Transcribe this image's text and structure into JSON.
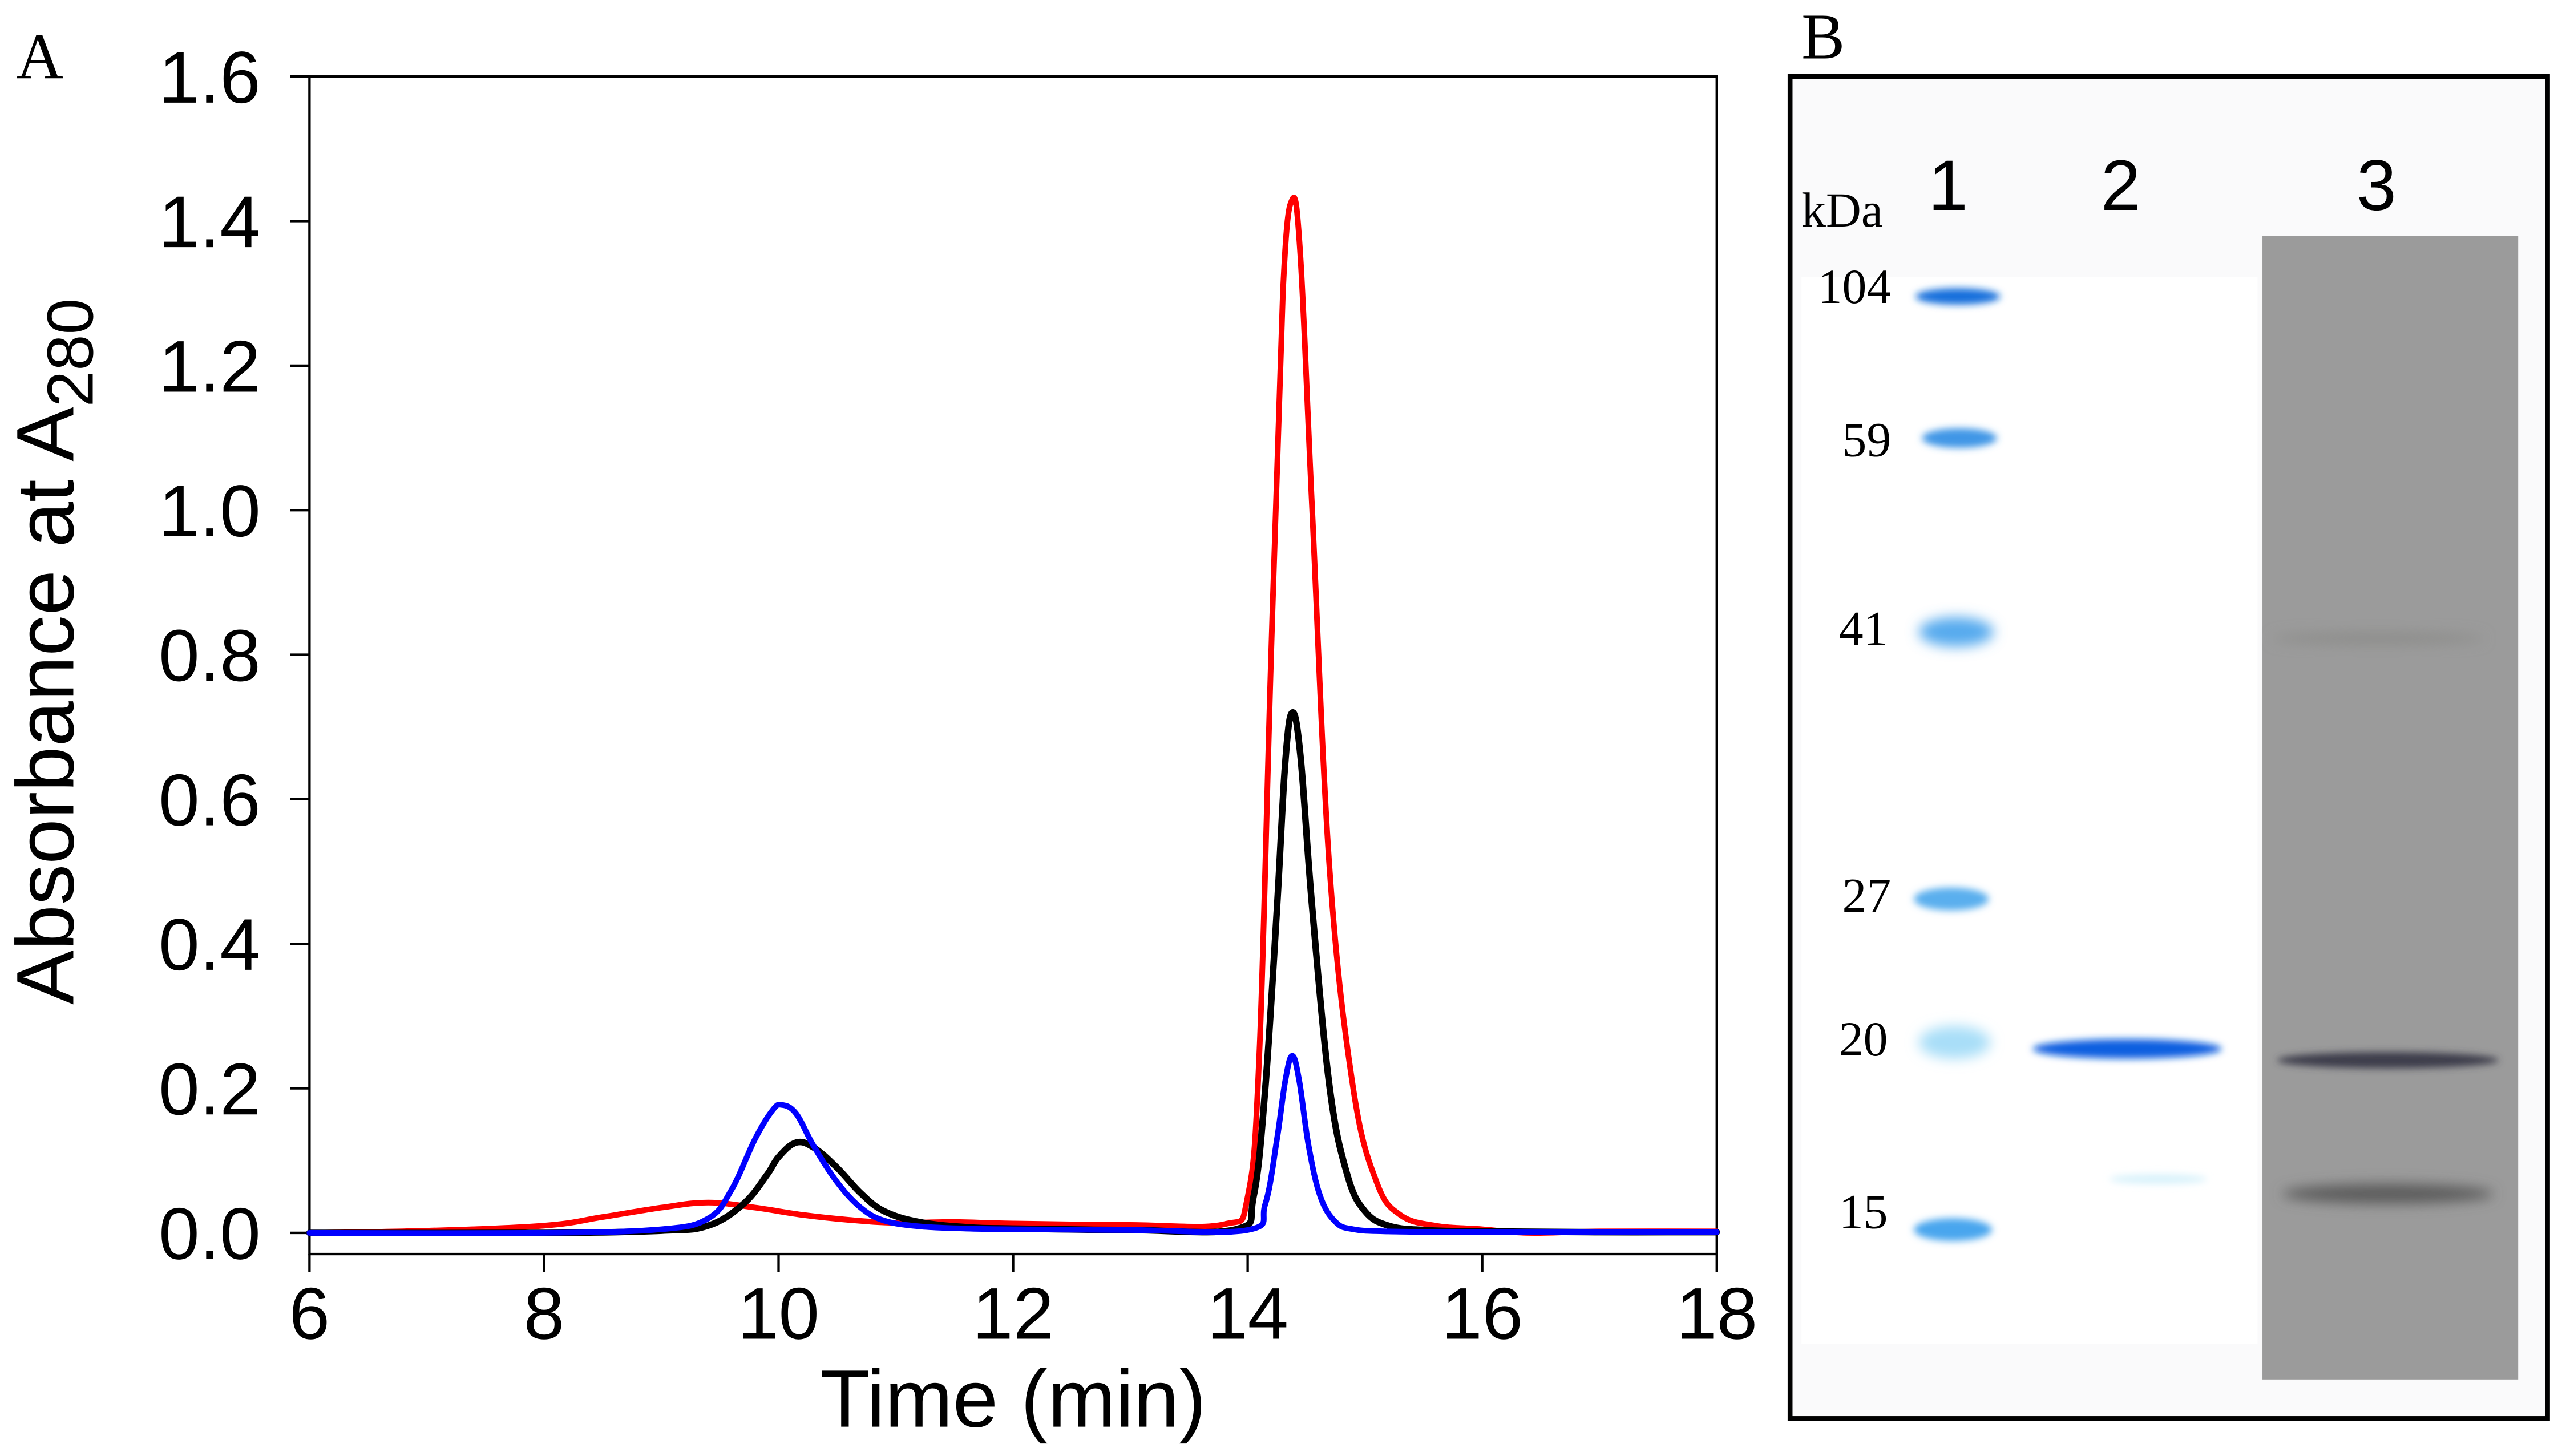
{
  "chart_data": [
    {
      "type": "line",
      "panel_label": "A",
      "title": "",
      "xlabel": "Time (min)",
      "ylabel_main": "Absorbance  at  A",
      "ylabel_sub": "280",
      "xlim": [
        6,
        18
      ],
      "ylim": [
        0,
        1.6
      ],
      "xticks": [
        6,
        8,
        10,
        12,
        14,
        16,
        18
      ],
      "xtick_labels": [
        "6",
        "8",
        "10",
        "12",
        "14",
        "16",
        "18"
      ],
      "yticks": [
        0,
        0.2,
        0.4,
        0.6,
        0.8,
        1.0,
        1.2,
        1.4,
        1.6
      ],
      "ytick_labels": [
        "0.0",
        "0.2",
        "0.4",
        "0.6",
        "0.8",
        "1.0",
        "1.2",
        "1.4",
        "1.6"
      ],
      "grid": false,
      "legend": "none",
      "series": [
        {
          "name": "red",
          "color": "#ff0000",
          "x": [
            6,
            7,
            8,
            8.5,
            9,
            9.4,
            9.8,
            10.2,
            10.6,
            11,
            11.5,
            12,
            13,
            13.8,
            14.0,
            14.1,
            14.2,
            14.3,
            14.38,
            14.45,
            14.55,
            14.7,
            14.9,
            15.1,
            15.3,
            15.6,
            16,
            16.4,
            17,
            18
          ],
          "y": [
            0.0,
            0.003,
            0.01,
            0.022,
            0.035,
            0.042,
            0.035,
            0.025,
            0.018,
            0.014,
            0.015,
            0.013,
            0.011,
            0.012,
            0.05,
            0.25,
            0.8,
            1.3,
            1.43,
            1.35,
            1.0,
            0.5,
            0.2,
            0.07,
            0.025,
            0.01,
            0.005,
            0.0,
            0.002,
            0.002
          ]
        },
        {
          "name": "black",
          "color": "#000000",
          "x": [
            6,
            8,
            9,
            9.4,
            9.7,
            9.9,
            10.0,
            10.15,
            10.3,
            10.5,
            10.7,
            10.9,
            11.2,
            11.6,
            12,
            13,
            13.9,
            14.05,
            14.15,
            14.25,
            14.32,
            14.38,
            14.45,
            14.55,
            14.7,
            14.85,
            15.0,
            15.2,
            15.5,
            16,
            17,
            18
          ],
          "y": [
            0.0,
            0.0,
            0.003,
            0.01,
            0.04,
            0.08,
            0.105,
            0.125,
            0.118,
            0.09,
            0.055,
            0.03,
            0.015,
            0.008,
            0.006,
            0.004,
            0.005,
            0.05,
            0.2,
            0.45,
            0.65,
            0.72,
            0.66,
            0.45,
            0.2,
            0.08,
            0.03,
            0.01,
            0.004,
            0.002,
            0.001,
            0.001
          ]
        },
        {
          "name": "blue",
          "color": "#0000ff",
          "x": [
            6,
            8,
            9,
            9.4,
            9.6,
            9.8,
            9.95,
            10.03,
            10.15,
            10.3,
            10.5,
            10.7,
            10.9,
            11.2,
            11.6,
            12,
            13,
            14.0,
            14.15,
            14.25,
            14.32,
            14.38,
            14.44,
            14.52,
            14.62,
            14.75,
            14.9,
            15.2,
            16,
            18
          ],
          "y": [
            0.0,
            0.0,
            0.005,
            0.02,
            0.06,
            0.13,
            0.17,
            0.177,
            0.165,
            0.12,
            0.07,
            0.035,
            0.017,
            0.009,
            0.006,
            0.005,
            0.004,
            0.004,
            0.04,
            0.13,
            0.21,
            0.245,
            0.21,
            0.12,
            0.05,
            0.015,
            0.005,
            0.002,
            0.001,
            0.001
          ]
        }
      ]
    },
    {
      "type": "gel",
      "panel_label": "B",
      "unit_label": "kDa",
      "lanes": [
        "1",
        "2",
        "3"
      ],
      "marker_labels": [
        "104",
        "59",
        "41",
        "27",
        "20",
        "15"
      ],
      "marker_colors": {
        "ladder": "#1a7be0",
        "lane2_band": "#1060e0",
        "lane3_background": "#9a9a9a",
        "lane3_band": "#3a3a4a"
      }
    }
  ]
}
